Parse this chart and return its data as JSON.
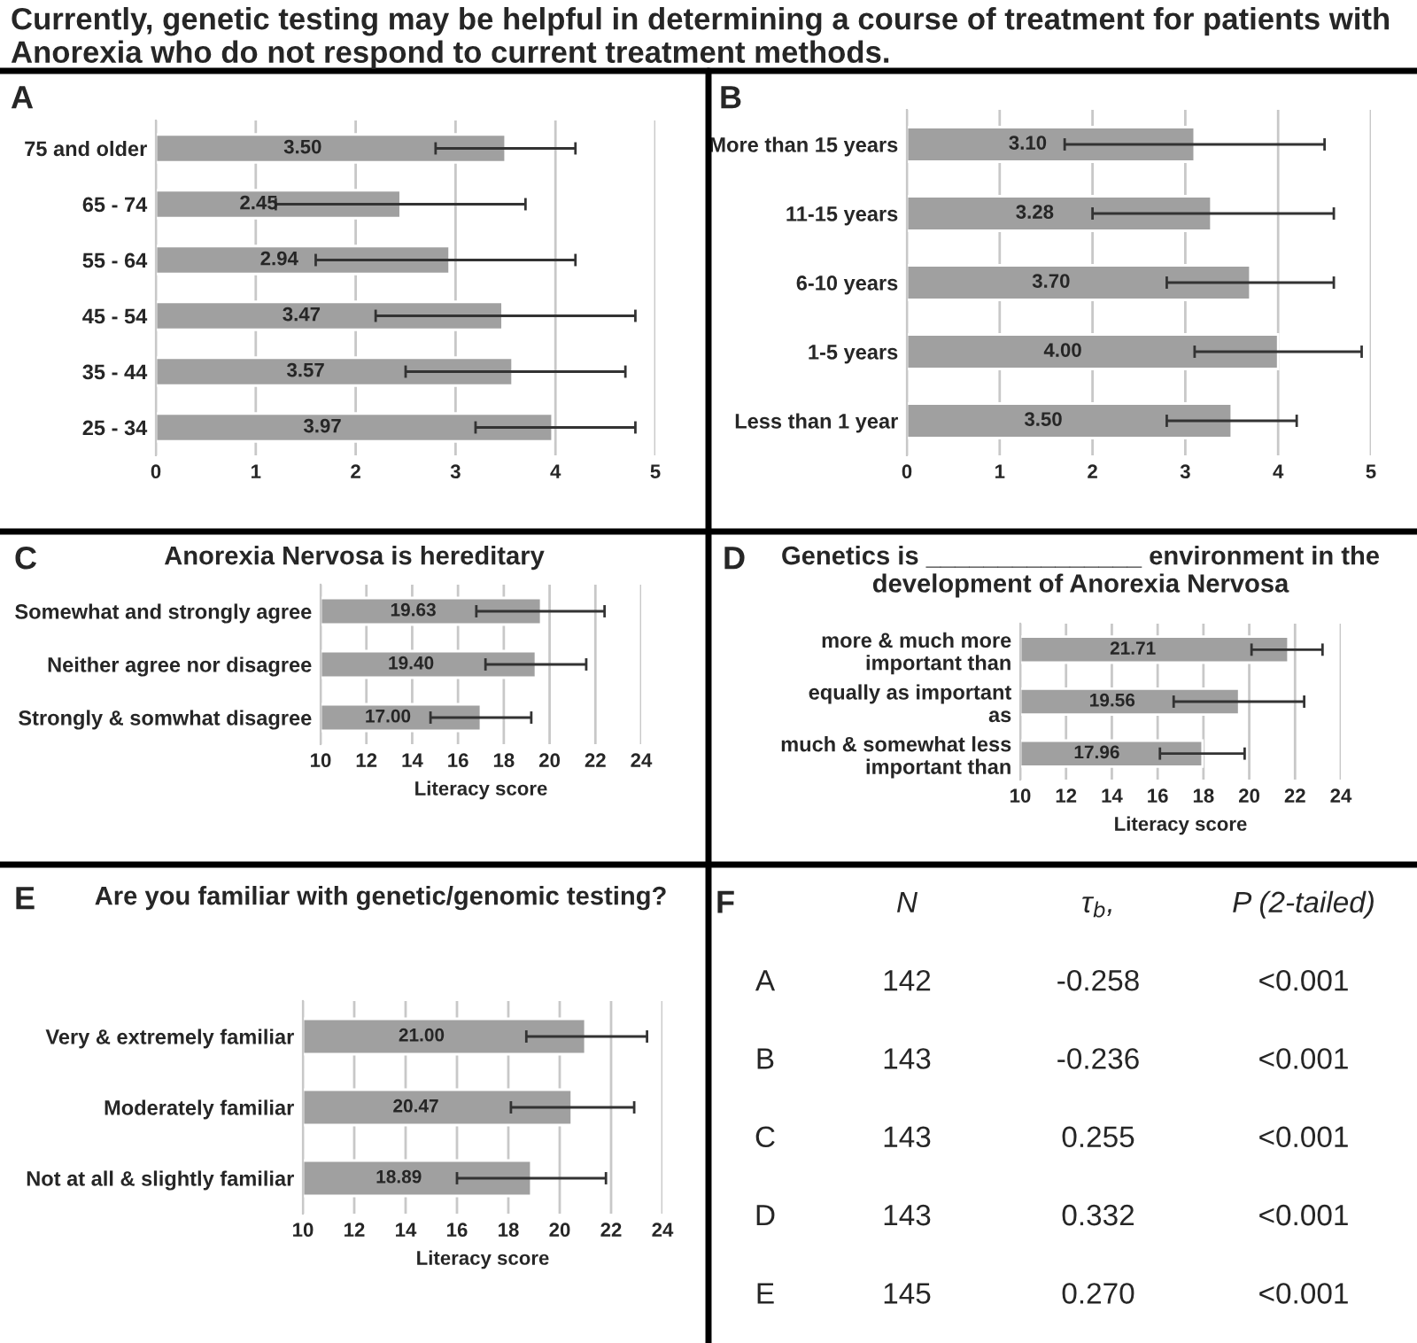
{
  "chart_data": [
    {
      "type": "bar",
      "orientation": "horizontal",
      "title": "Currently, genetic testing may be helpful in determining a course of treatment for patients with Anorexia who do not respond to current treatment methods.",
      "annotations": [
        "A"
      ],
      "categories": [
        "75 and older",
        "65 - 74",
        "55 - 64",
        "45 - 54",
        "35 - 44",
        "25 - 34"
      ],
      "values": [
        3.5,
        2.45,
        2.94,
        3.47,
        3.57,
        3.97
      ],
      "value_labels": [
        "3.50",
        "2.45",
        "2.94",
        "3.47",
        "3.57",
        "3.97"
      ],
      "errors": [
        [
          2.8,
          4.2
        ],
        [
          1.2,
          3.7
        ],
        [
          1.6,
          4.2
        ],
        [
          2.2,
          4.8
        ],
        [
          2.5,
          4.7
        ],
        [
          3.2,
          4.8
        ]
      ],
      "color": "#a0a0a0",
      "xlim": [
        0,
        5
      ],
      "xticks": [
        0,
        1,
        2,
        3,
        4,
        5
      ],
      "grid": "x"
    },
    {
      "type": "bar",
      "orientation": "horizontal",
      "annotations": [
        "B"
      ],
      "categories": [
        "More than 15 years",
        "11-15 years",
        "6-10 years",
        "1-5 years",
        "Less than 1 year"
      ],
      "values": [
        3.1,
        3.28,
        3.7,
        4.0,
        3.5
      ],
      "value_labels": [
        "3.10",
        "3.28",
        "3.70",
        "4.00",
        "3.50"
      ],
      "errors": [
        [
          1.7,
          4.5
        ],
        [
          2.0,
          4.6
        ],
        [
          2.8,
          4.6
        ],
        [
          3.1,
          4.9
        ],
        [
          2.8,
          4.2
        ]
      ],
      "color": "#a0a0a0",
      "xlim": [
        0,
        5
      ],
      "xticks": [
        0,
        1,
        2,
        3,
        4,
        5
      ],
      "grid": "x"
    },
    {
      "type": "bar",
      "orientation": "horizontal",
      "title": "Anorexia Nervosa is hereditary",
      "annotations": [
        "C"
      ],
      "xlabel": "Literacy score",
      "categories": [
        "Somewhat and strongly agree",
        "Neither agree nor disagree",
        "Strongly & somwhat disagree"
      ],
      "values": [
        19.63,
        19.4,
        17.0
      ],
      "value_labels": [
        "19.63",
        "19.40",
        "17.00"
      ],
      "errors": [
        [
          16.8,
          22.4
        ],
        [
          17.2,
          21.6
        ],
        [
          14.8,
          19.2
        ]
      ],
      "color": "#a0a0a0",
      "xlim": [
        10,
        24
      ],
      "xticks": [
        10,
        12,
        14,
        16,
        18,
        20,
        22,
        24
      ],
      "grid": "x"
    },
    {
      "type": "bar",
      "orientation": "horizontal",
      "title": "Genetics is _______________ environment in the development of Anorexia Nervosa",
      "annotations": [
        "D"
      ],
      "xlabel": "Literacy score",
      "categories": [
        "more & much more important than",
        "equally as important as",
        "much & somewhat less important than"
      ],
      "values": [
        21.71,
        19.56,
        17.96
      ],
      "value_labels": [
        "21.71",
        "19.56",
        "17.96"
      ],
      "errors": [
        [
          20.1,
          23.2
        ],
        [
          16.7,
          22.4
        ],
        [
          16.1,
          19.8
        ]
      ],
      "color": "#a0a0a0",
      "xlim": [
        10,
        24
      ],
      "xticks": [
        10,
        12,
        14,
        16,
        18,
        20,
        22,
        24
      ],
      "grid": "x"
    },
    {
      "type": "bar",
      "orientation": "horizontal",
      "title": "Are you familiar with genetic/genomic testing?",
      "annotations": [
        "E"
      ],
      "xlabel": "Literacy score",
      "categories": [
        "Very & extremely familiar",
        "Moderately familiar",
        "Not at all & slightly familiar"
      ],
      "values": [
        21.0,
        20.47,
        18.89
      ],
      "value_labels": [
        "21.00",
        "20.47",
        "18.89"
      ],
      "errors": [
        [
          18.7,
          23.4
        ],
        [
          18.1,
          22.9
        ],
        [
          16.0,
          21.8
        ]
      ],
      "color": "#a0a0a0",
      "xlim": [
        10,
        24
      ],
      "xticks": [
        10,
        12,
        14,
        16,
        18,
        20,
        22,
        24
      ],
      "grid": "x"
    },
    {
      "type": "other",
      "annotations": [
        "F",
        "N",
        "τ$_{b}$,",
        "P (2-tailed)",
        "A",
        "142",
        "-0.258",
        "<0.001",
        "B",
        "143",
        "-0.236",
        "<0.001",
        "C",
        "143",
        "0.255",
        "<0.001",
        "D",
        "143",
        "0.332",
        "<0.001",
        "E",
        "145",
        "0.270",
        "<0.001"
      ]
    }
  ]
}
